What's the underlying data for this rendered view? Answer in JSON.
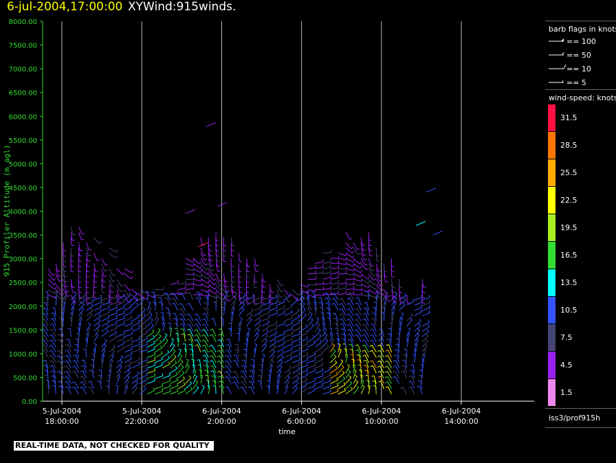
{
  "header": {
    "date_time": "6-jul-2004,17:00:00",
    "product": "XYWind:915winds."
  },
  "colors": {
    "axis": "#33dd33",
    "time_lines": "#bbbbbb"
  },
  "chart_data": {
    "type": "scatter",
    "subtype": "wind barbs",
    "ylabel": "915 Profiler Altitude (m agl)",
    "xlabel": "time",
    "ylim": [
      0,
      8000
    ],
    "yticks": [
      "0.00",
      "500.00",
      "1000.00",
      "1500.00",
      "2000.00",
      "2500.00",
      "3000.00",
      "3500.00",
      "4000.00",
      "4500.00",
      "5000.00",
      "5500.00",
      "6000.00",
      "6500.00",
      "7000.00",
      "7500.00",
      "8000.00"
    ],
    "xticks": [
      {
        "date": "5-Jul-2004",
        "time": "18:00:00"
      },
      {
        "date": "5-Jul-2004",
        "time": "22:00:00"
      },
      {
        "date": "6-Jul-2004",
        "time": "2:00:00"
      },
      {
        "date": "6-Jul-2004",
        "time": "6:00:00"
      },
      {
        "date": "6-Jul-2004",
        "time": "10:00:00"
      },
      {
        "date": "6-Jul-2004",
        "time": "14:00:00"
      }
    ],
    "grid": "vertical lines at time ticks",
    "barb_legend": {
      "title": "barb flags in knots",
      "items": [
        {
          "label": "== 100"
        },
        {
          "label": "== 50"
        },
        {
          "label": "== 10"
        },
        {
          "label": "== 5"
        }
      ]
    },
    "color_scale": {
      "title": "wind-speed: knots",
      "bins": [
        {
          "label": "1.5",
          "color": "#ee88ee"
        },
        {
          "label": "4.5",
          "color": "#9922ee"
        },
        {
          "label": "7.5",
          "color": "#444477"
        },
        {
          "label": "10.5",
          "color": "#3355ff"
        },
        {
          "label": "13.5",
          "color": "#00ffff"
        },
        {
          "label": "16.5",
          "color": "#33dd33"
        },
        {
          "label": "19.5",
          "color": "#aaee22"
        },
        {
          "label": "22.5",
          "color": "#ffff00"
        },
        {
          "label": "25.5",
          "color": "#ffaa00"
        },
        {
          "label": "28.5",
          "color": "#ff7700"
        },
        {
          "label": "31.5",
          "color": "#ff1144"
        }
      ]
    }
  },
  "footer": {
    "qc_note": "REAL-TIME DATA, NOT CHECKED FOR QUALITY",
    "source": "iss3/prof915h"
  }
}
